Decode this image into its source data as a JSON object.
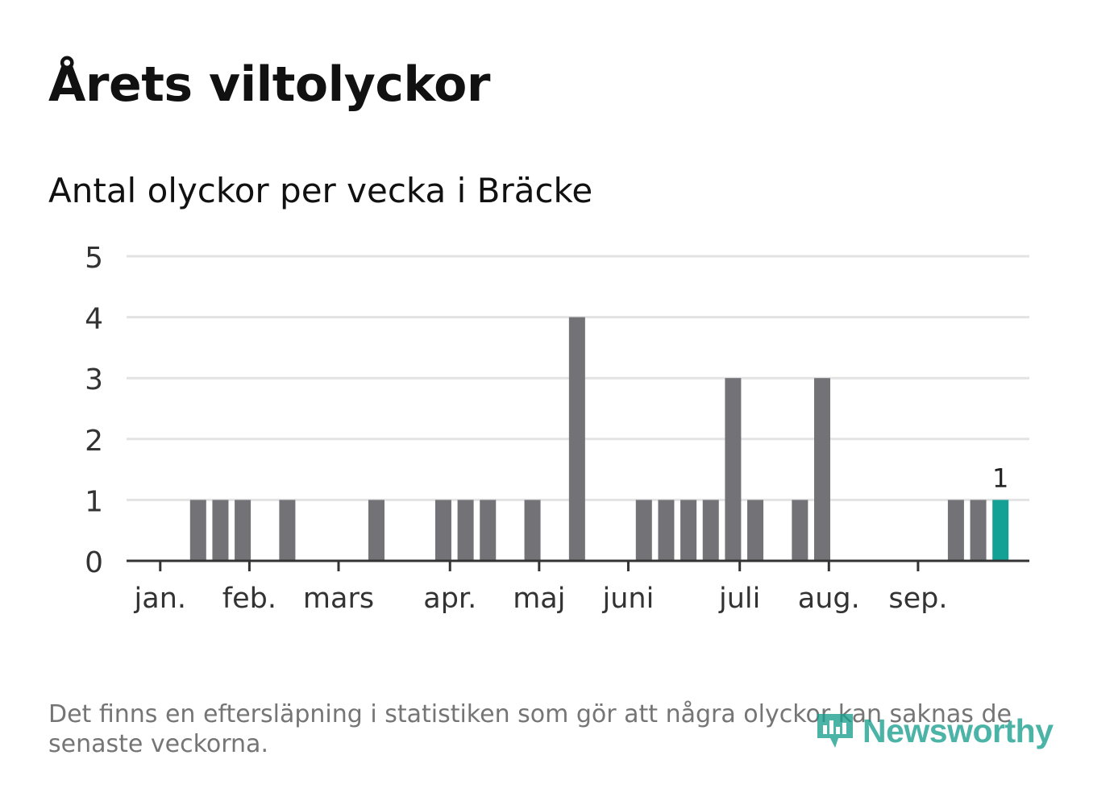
{
  "title": "Årets viltolyckor",
  "subtitle": "Antal olyckor per vecka i Bräcke",
  "footnote": "Det finns en eftersläpning i statistiken som gör att några olyckor kan saknas de senaste veckorna.",
  "logo": {
    "text": "Newsworthy",
    "icon": "newsworthy-chart-bubble-icon"
  },
  "colors": {
    "bar": "#727277",
    "highlight": "#13a196",
    "grid": "#e3e3e3",
    "axis": "#333333",
    "text": "#333333"
  },
  "chart_data": {
    "type": "bar",
    "ylim": [
      0,
      5
    ],
    "yticks": [
      "0",
      "1",
      "2",
      "3",
      "4",
      "5"
    ],
    "grid": true,
    "weeks": [
      1,
      2,
      3,
      4,
      5,
      6,
      7,
      8,
      9,
      10,
      11,
      12,
      13,
      14,
      15,
      16,
      17,
      18,
      19,
      20,
      21,
      22,
      23,
      24,
      25,
      26,
      27,
      28,
      29,
      30,
      31,
      32,
      33,
      34,
      35,
      36,
      37,
      38,
      39
    ],
    "values": [
      0,
      0,
      1,
      1,
      1,
      0,
      1,
      0,
      0,
      0,
      1,
      0,
      0,
      1,
      1,
      1,
      0,
      1,
      0,
      4,
      0,
      0,
      1,
      1,
      1,
      1,
      3,
      1,
      0,
      1,
      3,
      0,
      0,
      0,
      0,
      0,
      1,
      1,
      1
    ],
    "highlight_last": true,
    "last_label": "1",
    "month_labels": [
      {
        "label": "jan.",
        "week": 1.3
      },
      {
        "label": "feb.",
        "week": 5.3
      },
      {
        "label": "mars",
        "week": 9.3
      },
      {
        "label": "apr.",
        "week": 14.3
      },
      {
        "label": "maj",
        "week": 18.3
      },
      {
        "label": "juni",
        "week": 22.3
      },
      {
        "label": "juli",
        "week": 27.3
      },
      {
        "label": "aug.",
        "week": 31.3
      },
      {
        "label": "sep.",
        "week": 35.3
      }
    ]
  }
}
